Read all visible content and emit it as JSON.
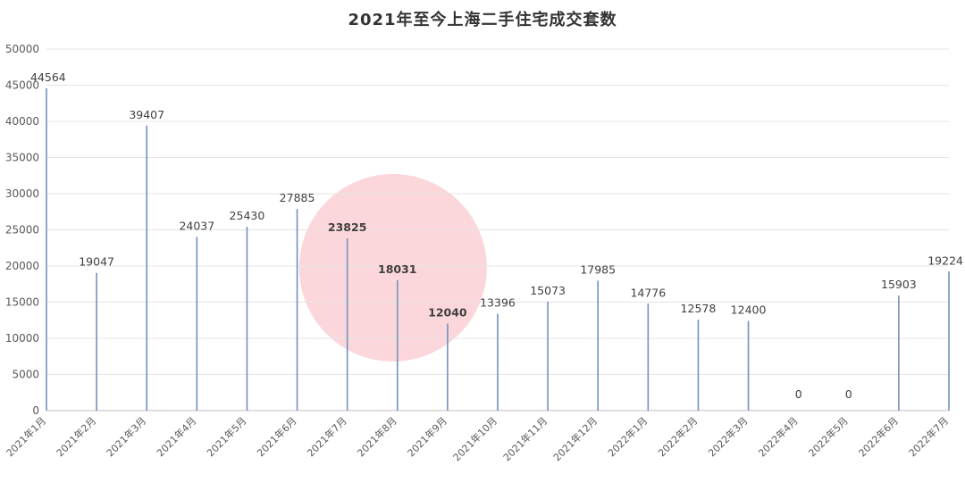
{
  "chart_data": {
    "type": "bar",
    "title": "2021年至今上海二手住宅成交套数",
    "categories": [
      "2021年1月",
      "2021年2月",
      "2021年3月",
      "2021年4月",
      "2021年5月",
      "2021年6月",
      "2021年7月",
      "2021年8月",
      "2021年9月",
      "2021年10月",
      "2021年11月",
      "2021年12月",
      "2022年1月",
      "2022年2月",
      "2022年3月",
      "2022年4月",
      "2022年5月",
      "2022年6月",
      "2022年7月"
    ],
    "values": [
      44564,
      19047,
      39407,
      24037,
      25430,
      27885,
      23825,
      18031,
      12040,
      13396,
      15073,
      17985,
      14776,
      12578,
      12400,
      0,
      0,
      15903,
      19224
    ],
    "ylim": [
      0,
      50000
    ],
    "yticks": [
      0,
      5000,
      10000,
      15000,
      20000,
      25000,
      30000,
      35000,
      40000,
      45000,
      50000
    ],
    "grid": true,
    "bar_color": "#6f93bd",
    "highlight_color": "#f9c9cf",
    "highlight_categories": [
      "2021年7月",
      "2021年8月",
      "2021年9月"
    ]
  }
}
